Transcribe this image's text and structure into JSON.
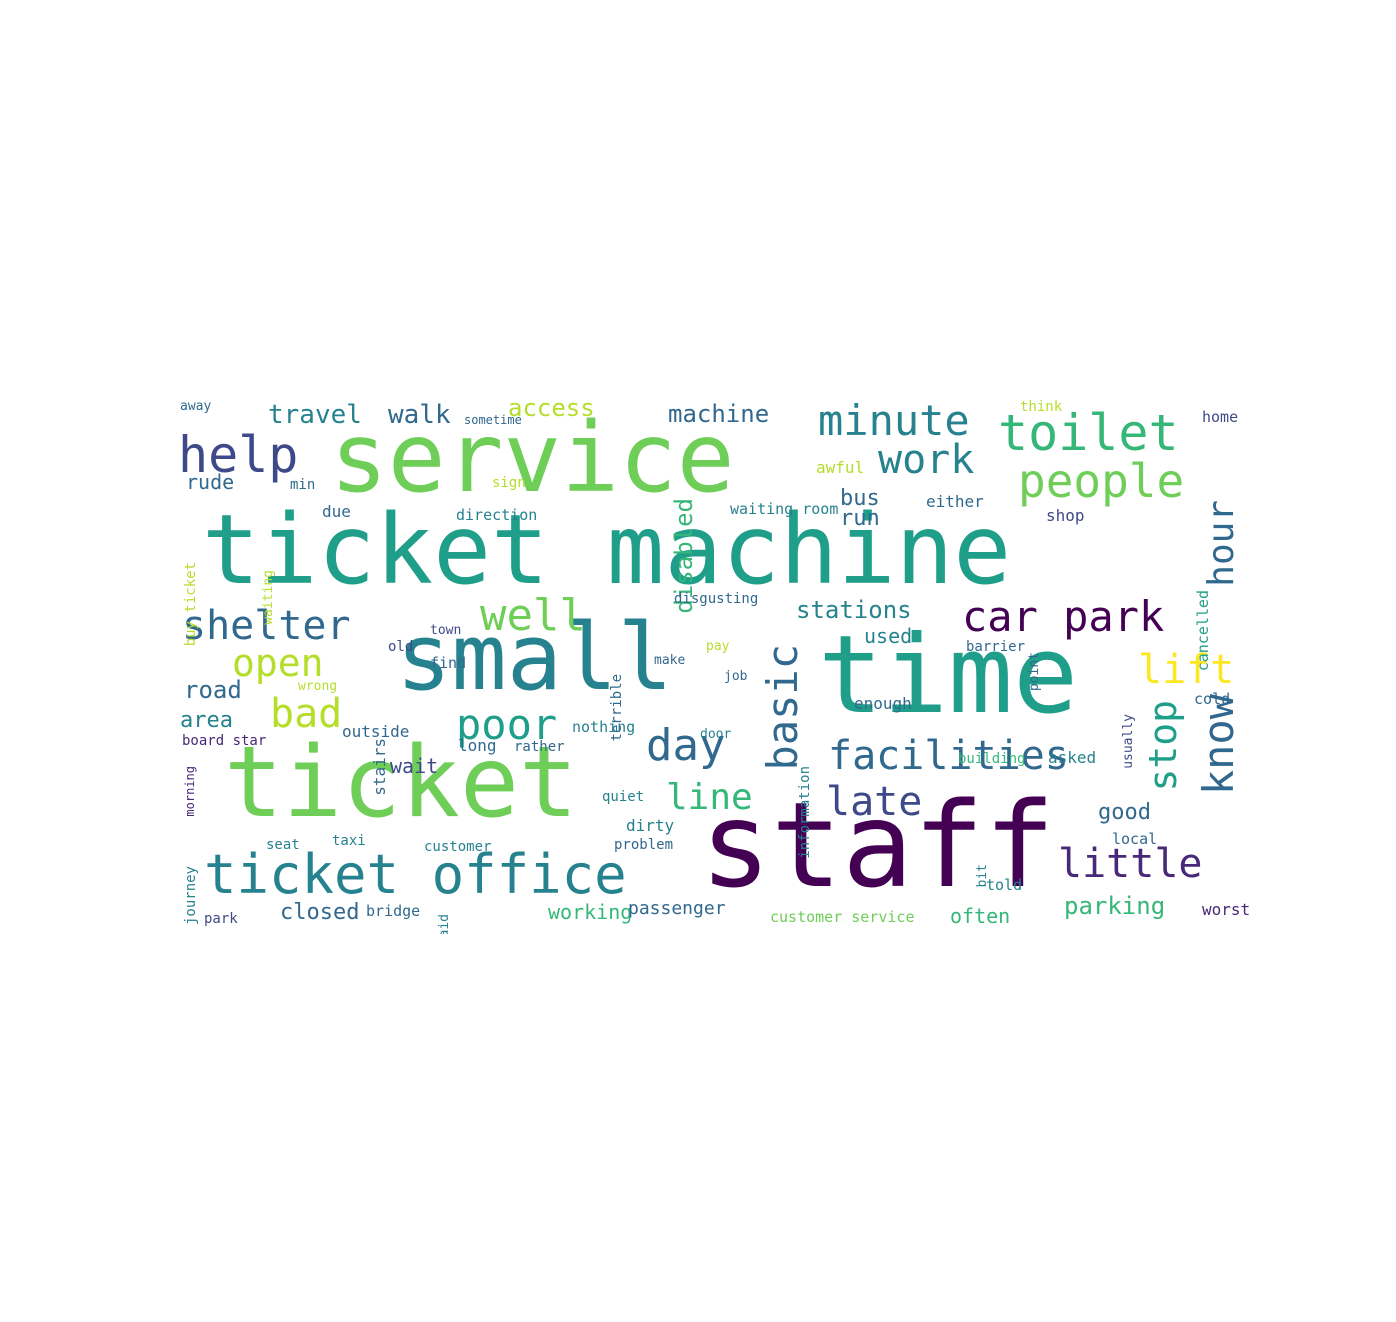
{
  "palette": [
    "#440154",
    "#482878",
    "#3e4989",
    "#31688e",
    "#26828e",
    "#1f9e89",
    "#35b779",
    "#6ece58",
    "#b5de2b",
    "#fde725"
  ],
  "words": [
    {
      "t": "service",
      "c": "#6ece58"
    },
    {
      "t": "ticket machine",
      "c": "#1f9e89"
    },
    {
      "t": "small",
      "c": "#26828e"
    },
    {
      "t": "time",
      "c": "#1f9e89"
    },
    {
      "t": "ticket",
      "c": "#6ece58"
    },
    {
      "t": "staff",
      "c": "#440154"
    },
    {
      "t": "ticket office",
      "c": "#26828e"
    },
    {
      "t": "toilet",
      "c": "#35b779"
    },
    {
      "t": "help",
      "c": "#3e4989"
    },
    {
      "t": "minute",
      "c": "#26828e"
    },
    {
      "t": "people",
      "c": "#6ece58"
    },
    {
      "t": "work",
      "c": "#26828e"
    },
    {
      "t": "car park",
      "c": "#440154"
    },
    {
      "t": "shelter",
      "c": "#31688e"
    },
    {
      "t": "open",
      "c": "#b5de2b"
    },
    {
      "t": "well",
      "c": "#6ece58"
    },
    {
      "t": "bad",
      "c": "#b5de2b"
    },
    {
      "t": "poor",
      "c": "#1f9e89"
    },
    {
      "t": "day",
      "c": "#31688e"
    },
    {
      "t": "basic",
      "c": "#31688e"
    },
    {
      "t": "facilities",
      "c": "#31688e"
    },
    {
      "t": "late",
      "c": "#3e4989"
    },
    {
      "t": "line",
      "c": "#35b779"
    },
    {
      "t": "lift",
      "c": "#fde725"
    },
    {
      "t": "little",
      "c": "#482878"
    },
    {
      "t": "know",
      "c": "#31688e"
    },
    {
      "t": "stop",
      "c": "#1f9e89"
    },
    {
      "t": "hour",
      "c": "#31688e"
    },
    {
      "t": "disabled",
      "c": "#35b779"
    },
    {
      "t": "travel",
      "c": "#26828e"
    },
    {
      "t": "walk",
      "c": "#31688e"
    },
    {
      "t": "access",
      "c": "#b5de2b"
    },
    {
      "t": "machine",
      "c": "#31688e"
    },
    {
      "t": "stations",
      "c": "#26828e"
    },
    {
      "t": "road",
      "c": "#31688e"
    },
    {
      "t": "area",
      "c": "#26828e"
    },
    {
      "t": "rude",
      "c": "#31688e"
    },
    {
      "t": "bus",
      "c": "#31688e"
    },
    {
      "t": "run",
      "c": "#31688e"
    },
    {
      "t": "parking",
      "c": "#35b779"
    },
    {
      "t": "closed",
      "c": "#31688e"
    },
    {
      "t": "good",
      "c": "#31688e"
    },
    {
      "t": "used",
      "c": "#26828e"
    },
    {
      "t": "stairs",
      "c": "#31688e"
    },
    {
      "t": "wait",
      "c": "#3e4989"
    },
    {
      "t": "working",
      "c": "#35b779"
    },
    {
      "t": "passenger",
      "c": "#31688e"
    },
    {
      "t": "customer service",
      "c": "#6ece58"
    },
    {
      "t": "often",
      "c": "#35b779"
    },
    {
      "t": "waiting room",
      "c": "#26828e"
    },
    {
      "t": "direction",
      "c": "#26828e"
    },
    {
      "t": "terrible",
      "c": "#31688e"
    },
    {
      "t": "disgusting",
      "c": "#31688e"
    },
    {
      "t": "information",
      "c": "#26828e"
    },
    {
      "t": "cancelled",
      "c": "#1f9e89"
    },
    {
      "t": "awful",
      "c": "#b5de2b"
    },
    {
      "t": "either",
      "c": "#31688e"
    },
    {
      "t": "shop",
      "c": "#3e4989"
    },
    {
      "t": "home",
      "c": "#3e4989"
    },
    {
      "t": "think",
      "c": "#b5de2b"
    },
    {
      "t": "sometime",
      "c": "#31688e"
    },
    {
      "t": "away",
      "c": "#31688e"
    },
    {
      "t": "min",
      "c": "#31688e"
    },
    {
      "t": "due",
      "c": "#31688e"
    },
    {
      "t": "sign",
      "c": "#b5de2b"
    },
    {
      "t": "old",
      "c": "#3e4989"
    },
    {
      "t": "find",
      "c": "#31688e"
    },
    {
      "t": "town",
      "c": "#3e4989"
    },
    {
      "t": "wrong",
      "c": "#b5de2b"
    },
    {
      "t": "outside",
      "c": "#31688e"
    },
    {
      "t": "board star",
      "c": "#482878"
    },
    {
      "t": "long",
      "c": "#31688e"
    },
    {
      "t": "rather",
      "c": "#31688e"
    },
    {
      "t": "nothing",
      "c": "#26828e"
    },
    {
      "t": "door",
      "c": "#26828e"
    },
    {
      "t": "job",
      "c": "#31688e"
    },
    {
      "t": "make",
      "c": "#31688e"
    },
    {
      "t": "pay",
      "c": "#b5de2b"
    },
    {
      "t": "enough",
      "c": "#31688e"
    },
    {
      "t": "building",
      "c": "#35b779"
    },
    {
      "t": "asked",
      "c": "#26828e"
    },
    {
      "t": "local",
      "c": "#31688e"
    },
    {
      "t": "told",
      "c": "#26828e"
    },
    {
      "t": "bit",
      "c": "#26828e"
    },
    {
      "t": "usually",
      "c": "#3e4989"
    },
    {
      "t": "cold",
      "c": "#31688e"
    },
    {
      "t": "barrier",
      "c": "#31688e"
    },
    {
      "t": "point",
      "c": "#31688e"
    },
    {
      "t": "worst",
      "c": "#482878"
    },
    {
      "t": "seat",
      "c": "#26828e"
    },
    {
      "t": "taxi",
      "c": "#26828e"
    },
    {
      "t": "customer",
      "c": "#26828e"
    },
    {
      "t": "problem",
      "c": "#31688e"
    },
    {
      "t": "dirty",
      "c": "#26828e"
    },
    {
      "t": "quiet",
      "c": "#26828e"
    },
    {
      "t": "morning",
      "c": "#482878"
    },
    {
      "t": "journey",
      "c": "#26828e"
    },
    {
      "t": "buy ticket",
      "c": "#b5de2b"
    },
    {
      "t": "waiting",
      "c": "#b5de2b"
    },
    {
      "t": "park",
      "c": "#3e4989"
    },
    {
      "t": "bridge",
      "c": "#31688e"
    },
    {
      "t": "said",
      "c": "#26828e"
    }
  ]
}
